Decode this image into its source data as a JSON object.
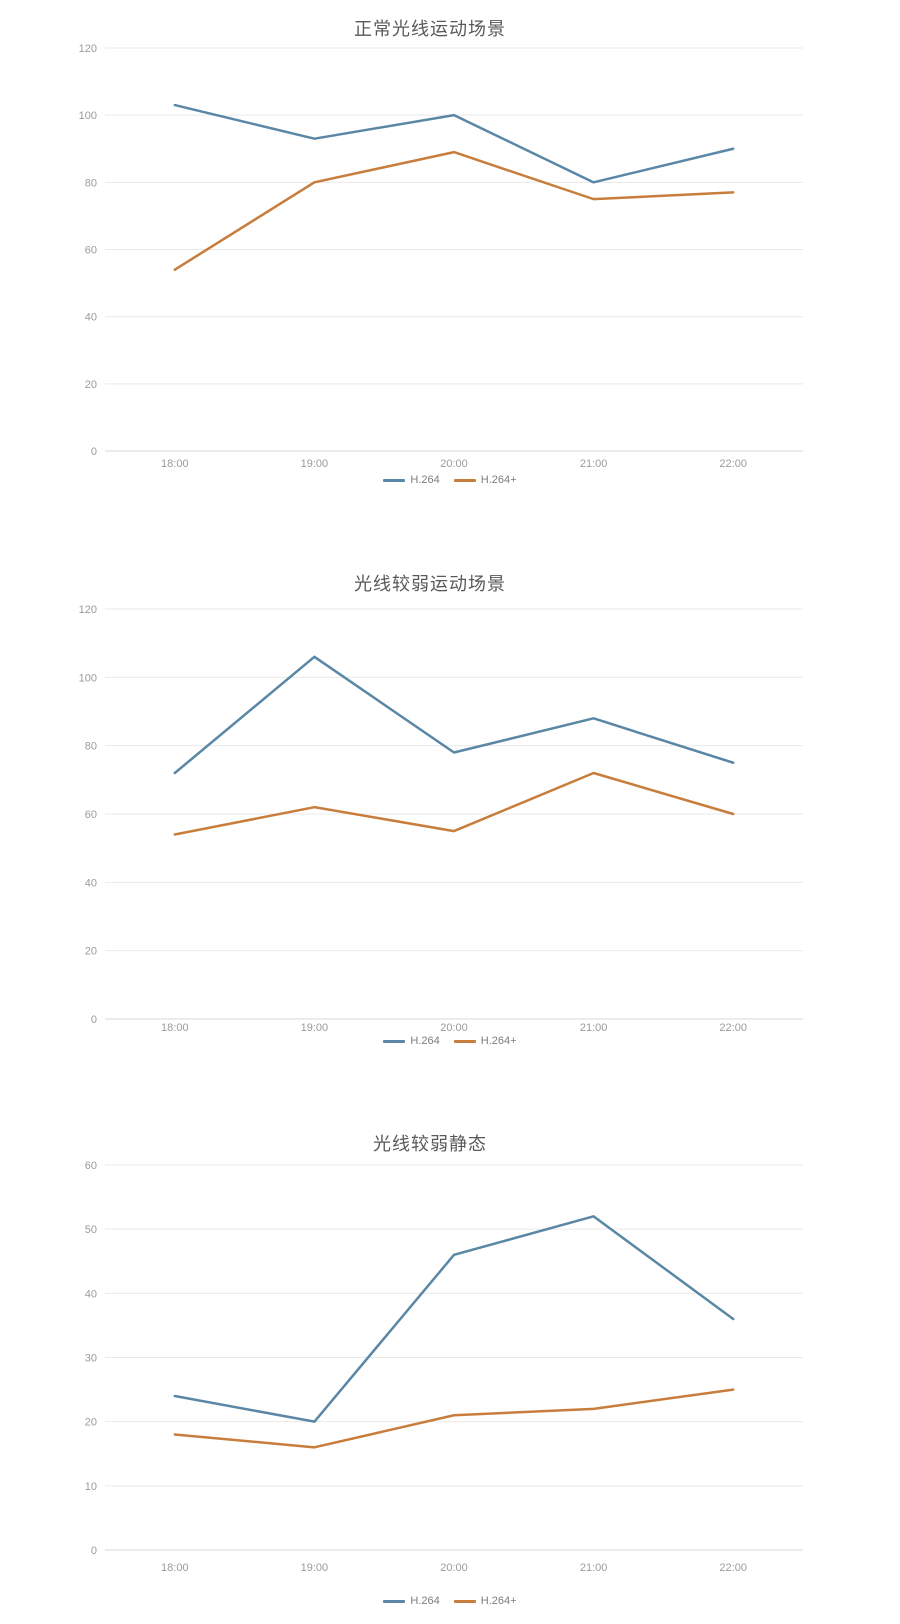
{
  "colors": {
    "h264": "#5a87a5",
    "h264_plus": "#c87d3c",
    "grid": "#e9e9e9",
    "axis_line": "#d9d9d9",
    "tick_label": "#9b9b9b",
    "title": "#595959",
    "legend_text": "#7d7d7d",
    "background": "#ffffff"
  },
  "chart_data": [
    {
      "type": "line",
      "title": "正常光线运动场景",
      "categories": [
        "18:00",
        "19:00",
        "20:00",
        "21:00",
        "22:00"
      ],
      "series": [
        {
          "name": "H.264",
          "color": "h264",
          "values": [
            103,
            93,
            100,
            80,
            90
          ]
        },
        {
          "name": "H.264+",
          "color": "h264_plus",
          "values": [
            54,
            80,
            89,
            75,
            77
          ]
        }
      ],
      "xlabel": "",
      "ylabel": "",
      "ylim": [
        0,
        120
      ],
      "ytick_step": 20,
      "grid": "on",
      "legend_position": "bottom"
    },
    {
      "type": "line",
      "title": "光线较弱运动场景",
      "categories": [
        "18:00",
        "19:00",
        "20:00",
        "21:00",
        "22:00"
      ],
      "series": [
        {
          "name": "H.264",
          "color": "h264",
          "values": [
            72,
            106,
            78,
            88,
            75
          ]
        },
        {
          "name": "H.264+",
          "color": "h264_plus",
          "values": [
            54,
            62,
            55,
            72,
            60
          ]
        }
      ],
      "xlabel": "",
      "ylabel": "",
      "ylim": [
        0,
        120
      ],
      "ytick_step": 20,
      "grid": "on",
      "legend_position": "bottom"
    },
    {
      "type": "line",
      "title": "光线较弱静态",
      "categories": [
        "18:00",
        "19:00",
        "20:00",
        "21:00",
        "22:00"
      ],
      "series": [
        {
          "name": "H.264",
          "color": "h264",
          "values": [
            24,
            20,
            46,
            52,
            36
          ]
        },
        {
          "name": "H.264+",
          "color": "h264_plus",
          "values": [
            18,
            16,
            21,
            22,
            25
          ]
        }
      ],
      "xlabel": "",
      "ylabel": "",
      "ylim": [
        0,
        60
      ],
      "ytick_step": 10,
      "grid": "on",
      "legend_position": "bottom"
    }
  ]
}
